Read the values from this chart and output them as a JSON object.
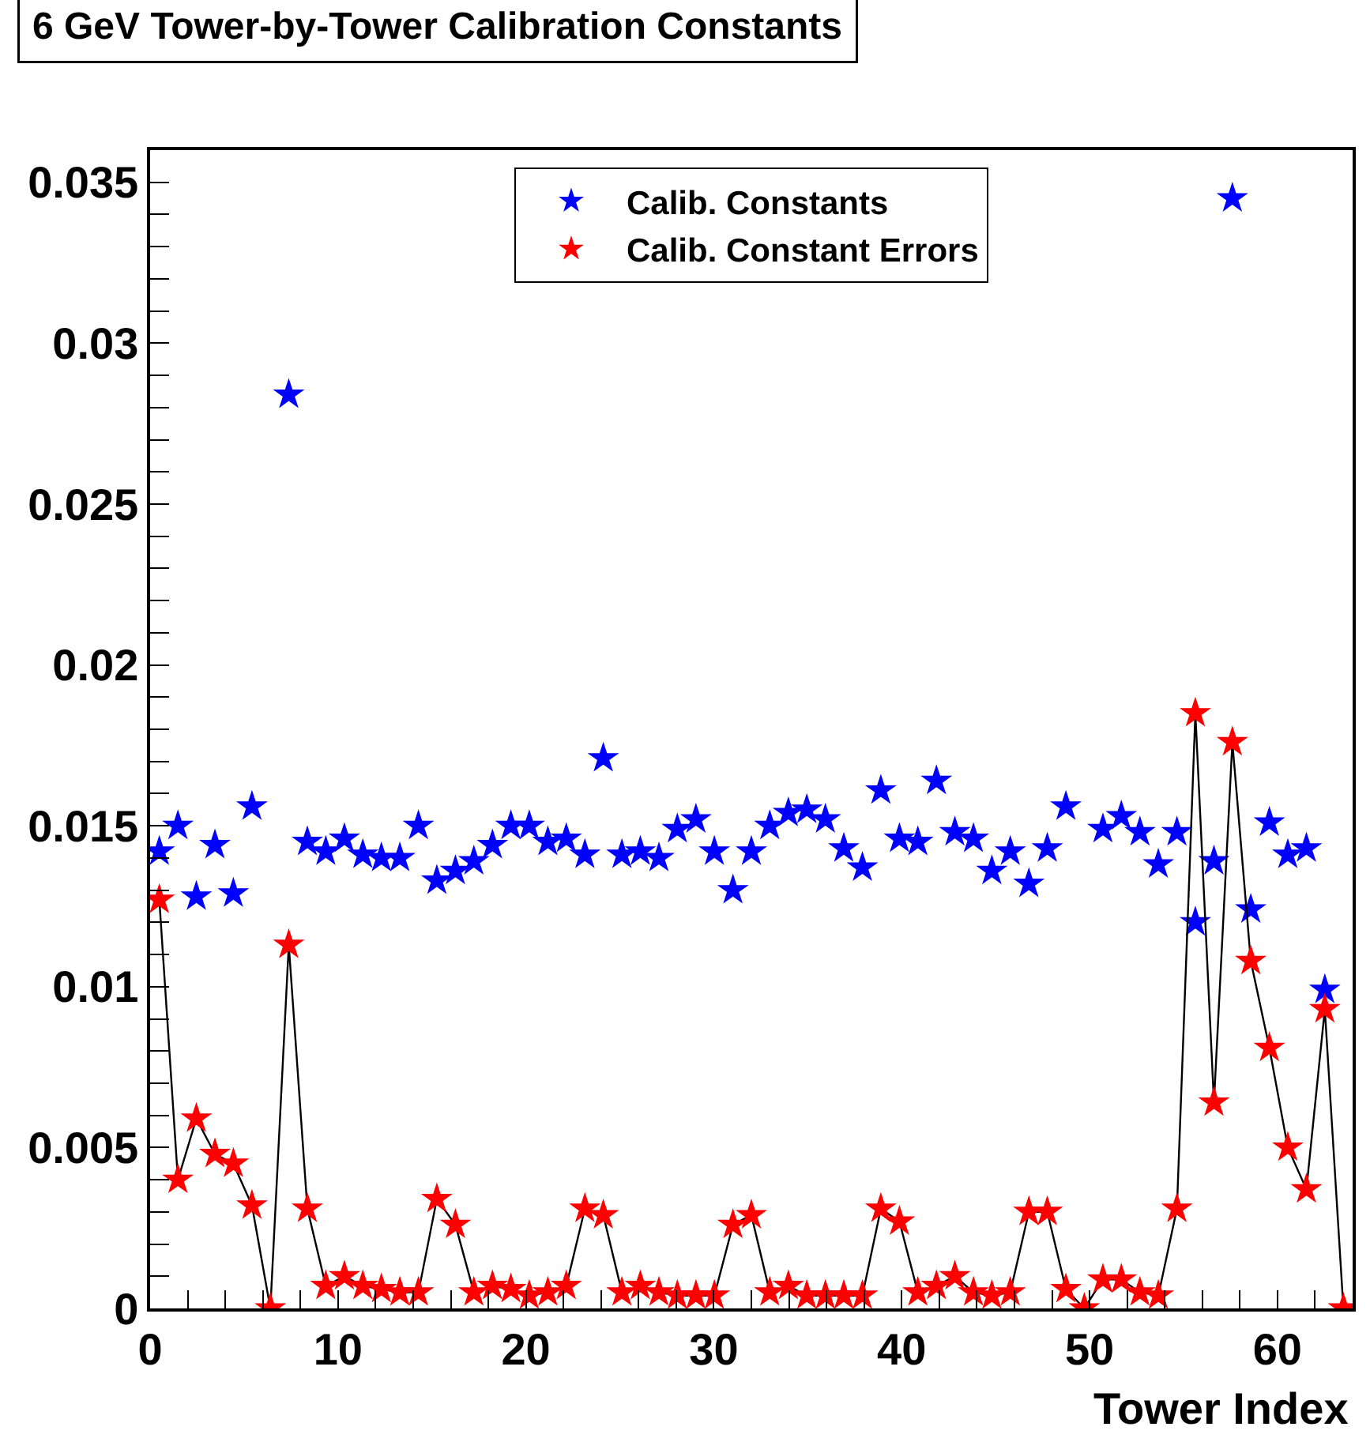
{
  "chart_data": {
    "type": "scatter",
    "title": "6 GeV Tower-by-Tower Calibration Constants",
    "xlabel": "Tower Index",
    "x": [
      0.49,
      1.48,
      2.46,
      3.45,
      4.43,
      5.42,
      6.4,
      7.38,
      8.37,
      9.35,
      10.34,
      11.32,
      12.31,
      13.29,
      14.28,
      15.26,
      16.25,
      17.23,
      18.22,
      19.2,
      20.18,
      21.17,
      22.15,
      23.14,
      24.12,
      25.11,
      26.09,
      27.08,
      28.06,
      29.05,
      30.03,
      31.02,
      32.0,
      32.98,
      33.97,
      34.95,
      35.94,
      36.92,
      37.91,
      38.89,
      39.88,
      40.86,
      41.85,
      42.83,
      43.82,
      44.8,
      45.78,
      46.77,
      47.75,
      48.74,
      49.72,
      50.71,
      51.69,
      52.68,
      53.66,
      54.65,
      55.63,
      56.62,
      57.6,
      58.58,
      59.57,
      60.55,
      61.54,
      62.52,
      63.51
    ],
    "series": [
      {
        "name": "Calib. Constants",
        "type": "scatter",
        "color": "#0000ff",
        "marker": "star",
        "values": [
          0.0142,
          0.015,
          0.0128,
          0.0144,
          0.0129,
          0.0156,
          null,
          0.0284,
          0.0145,
          0.0142,
          0.0146,
          0.0141,
          0.014,
          0.014,
          0.015,
          0.0133,
          0.0136,
          0.0139,
          0.0144,
          0.015,
          0.015,
          0.0145,
          0.0146,
          0.0141,
          0.0171,
          0.0141,
          0.0142,
          0.014,
          0.0149,
          0.0152,
          0.0142,
          0.013,
          0.0142,
          0.015,
          0.0154,
          0.0155,
          0.0152,
          0.0143,
          0.0137,
          0.0161,
          0.0146,
          0.0145,
          0.0164,
          0.0148,
          0.0146,
          0.0136,
          0.0142,
          0.0132,
          0.0143,
          0.0156,
          null,
          0.0149,
          0.0153,
          0.0148,
          0.0138,
          0.0148,
          0.012,
          0.0139,
          0.0345,
          0.0124,
          0.0151,
          0.0141,
          0.0143,
          0.0099,
          null
        ]
      },
      {
        "name": "Calib. Constant Errors",
        "type": "line",
        "color": "#ff0000",
        "marker": "star",
        "values": [
          0.0127,
          0.004,
          0.0059,
          0.0048,
          0.0045,
          0.0032,
          0,
          0.0113,
          0.0031,
          0.0007,
          0.001,
          0.0007,
          0.0006,
          0.0005,
          0.0005,
          0.0034,
          0.0026,
          0.0005,
          0.0007,
          0.0006,
          0.0004,
          0.0005,
          0.0007,
          0.0031,
          0.0029,
          0.0005,
          0.0007,
          0.0005,
          0.0004,
          0.0004,
          0.0004,
          0.0026,
          0.0029,
          0.0005,
          0.0007,
          0.0004,
          0.0004,
          0.0004,
          0.0004,
          0.0031,
          0.0027,
          0.0005,
          0.0007,
          0.001,
          0.0005,
          0.0004,
          0.0005,
          0.003,
          0.003,
          0.0006,
          0,
          0.0009,
          0.0009,
          0.0005,
          0.0004,
          0.0031,
          0.0185,
          0.0064,
          0.0176,
          0.0108,
          0.0081,
          0.005,
          0.0037,
          0.0093,
          0
        ]
      }
    ],
    "xlim": [
      0,
      64
    ],
    "xticks": [
      0,
      {
        "value": 2,
        "label": null
      },
      {
        "value": 4,
        "label": null
      },
      {
        "value": 6,
        "label": null
      },
      {
        "value": 8,
        "label": null
      },
      10,
      {
        "value": 12,
        "label": null
      },
      {
        "value": 14,
        "label": null
      },
      {
        "value": 16,
        "label": null
      },
      {
        "value": 18,
        "label": null
      },
      20,
      {
        "value": 22,
        "label": null
      },
      {
        "value": 24,
        "label": null
      },
      {
        "value": 26,
        "label": null
      },
      {
        "value": 28,
        "label": null
      },
      30,
      {
        "value": 32,
        "label": null
      },
      {
        "value": 34,
        "label": null
      },
      {
        "value": 36,
        "label": null
      },
      {
        "value": 38,
        "label": null
      },
      40,
      {
        "value": 42,
        "label": null
      },
      {
        "value": 44,
        "label": null
      },
      {
        "value": 46,
        "label": null
      },
      {
        "value": 48,
        "label": null
      },
      50,
      {
        "value": 52,
        "label": null
      },
      {
        "value": 54,
        "label": null
      },
      {
        "value": 56,
        "label": null
      },
      {
        "value": 58,
        "label": null
      },
      60,
      {
        "value": 62,
        "label": null
      }
    ],
    "ylim": [
      0,
      0.036
    ],
    "yticks": [
      0,
      {
        "value": 0.001,
        "label": null
      },
      {
        "value": 0.002,
        "label": null
      },
      {
        "value": 0.003,
        "label": null
      },
      {
        "value": 0.004,
        "label": null
      },
      0.005,
      {
        "value": 0.006,
        "label": null
      },
      {
        "value": 0.007,
        "label": null
      },
      {
        "value": 0.008,
        "label": null
      },
      {
        "value": 0.009,
        "label": null
      },
      0.01,
      {
        "value": 0.011,
        "label": null
      },
      {
        "value": 0.012,
        "label": null
      },
      {
        "value": 0.013,
        "label": null
      },
      {
        "value": 0.014,
        "label": null
      },
      0.015,
      {
        "value": 0.016,
        "label": null
      },
      {
        "value": 0.017,
        "label": null
      },
      {
        "value": 0.018,
        "label": null
      },
      {
        "value": 0.019,
        "label": null
      },
      0.02,
      {
        "value": 0.021,
        "label": null
      },
      {
        "value": 0.022,
        "label": null
      },
      {
        "value": 0.023,
        "label": null
      },
      {
        "value": 0.024,
        "label": null
      },
      0.025,
      {
        "value": 0.026,
        "label": null
      },
      {
        "value": 0.027,
        "label": null
      },
      {
        "value": 0.028,
        "label": null
      },
      {
        "value": 0.029,
        "label": null
      },
      0.03,
      {
        "value": 0.031,
        "label": null
      },
      {
        "value": 0.032,
        "label": null
      },
      {
        "value": 0.033,
        "label": null
      },
      {
        "value": 0.034,
        "label": null
      },
      0.035,
      {
        "value": 0.036,
        "label": null
      }
    ],
    "legend": "top"
  }
}
